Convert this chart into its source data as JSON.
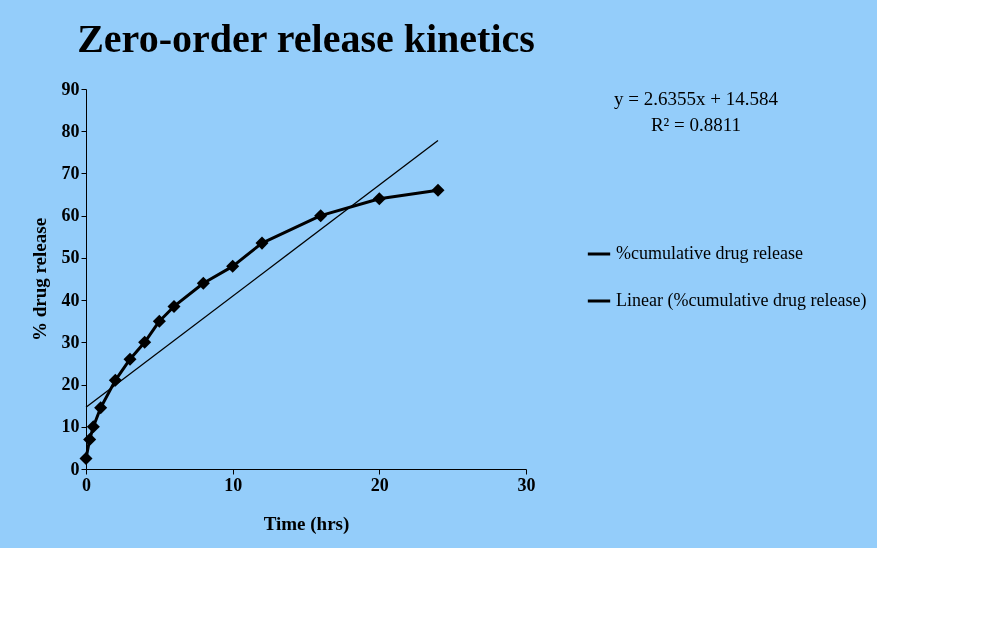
{
  "chart_data": {
    "type": "line",
    "title": "Zero-order release kinetics",
    "xlabel": "Time (hrs)",
    "ylabel": "% drug release",
    "x": [
      0,
      0.25,
      0.5,
      1,
      2,
      3,
      4,
      5,
      6,
      8,
      10,
      12,
      16,
      20,
      24
    ],
    "series": [
      {
        "name": "%cumulative drug release",
        "color": "#000000",
        "marker": "diamond",
        "values": [
          2.5,
          7,
          10,
          14.5,
          21,
          26,
          30,
          35,
          38.5,
          44,
          48,
          53.5,
          60,
          64,
          66
        ]
      },
      {
        "name": "Linear (%cumulative drug release)",
        "color": "#000000",
        "type": "line",
        "marker": "none",
        "x": [
          0,
          24
        ],
        "values": [
          14.6,
          77.8
        ]
      }
    ],
    "xlim": [
      0,
      30
    ],
    "xticks": [
      0,
      10,
      20,
      30
    ],
    "ylim": [
      0,
      90
    ],
    "yticks": [
      0,
      10,
      20,
      30,
      40,
      50,
      60,
      70,
      80,
      90
    ],
    "annotations": [
      "y = 2.6355x  + 14.584",
      "R² = 0.8811"
    ],
    "grid": false,
    "legend": "right"
  }
}
